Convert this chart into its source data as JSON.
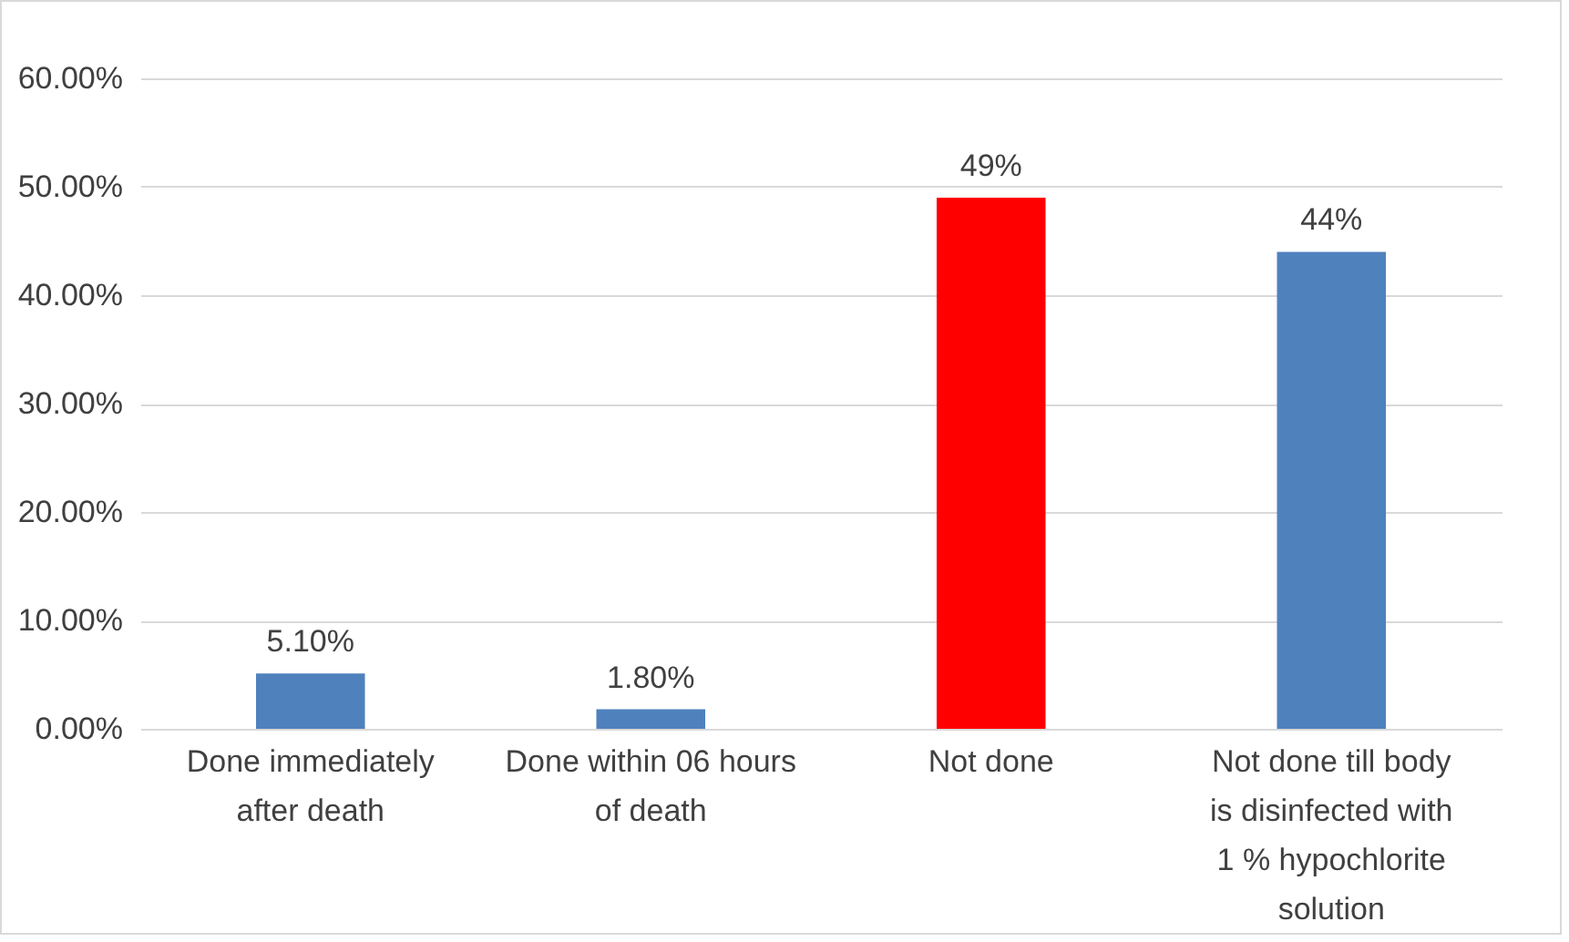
{
  "chart_data": {
    "type": "bar",
    "categories": [
      "Done immediately after death",
      "Done within 06 hours of death",
      "Not done",
      "Not done till body is disinfected with 1 % hypochlorite solution"
    ],
    "values": [
      5.1,
      1.8,
      49,
      44
    ],
    "colors": [
      "#4f81bd",
      "#4f81bd",
      "#ff0000",
      "#4f81bd"
    ],
    "value_labels": [
      "5.10%",
      "1.80%",
      "49%",
      "44%"
    ],
    "ylim": [
      0,
      60
    ],
    "yticks": [
      {
        "value": 0,
        "label": "0.00%"
      },
      {
        "value": 10,
        "label": "10.00%"
      },
      {
        "value": 20,
        "label": "20.00%"
      },
      {
        "value": 30,
        "label": "30.00%"
      },
      {
        "value": 40,
        "label": "40.00%"
      },
      {
        "value": 50,
        "label": "50.00%"
      },
      {
        "value": 60,
        "label": "60.00%"
      }
    ],
    "grid": "y"
  }
}
